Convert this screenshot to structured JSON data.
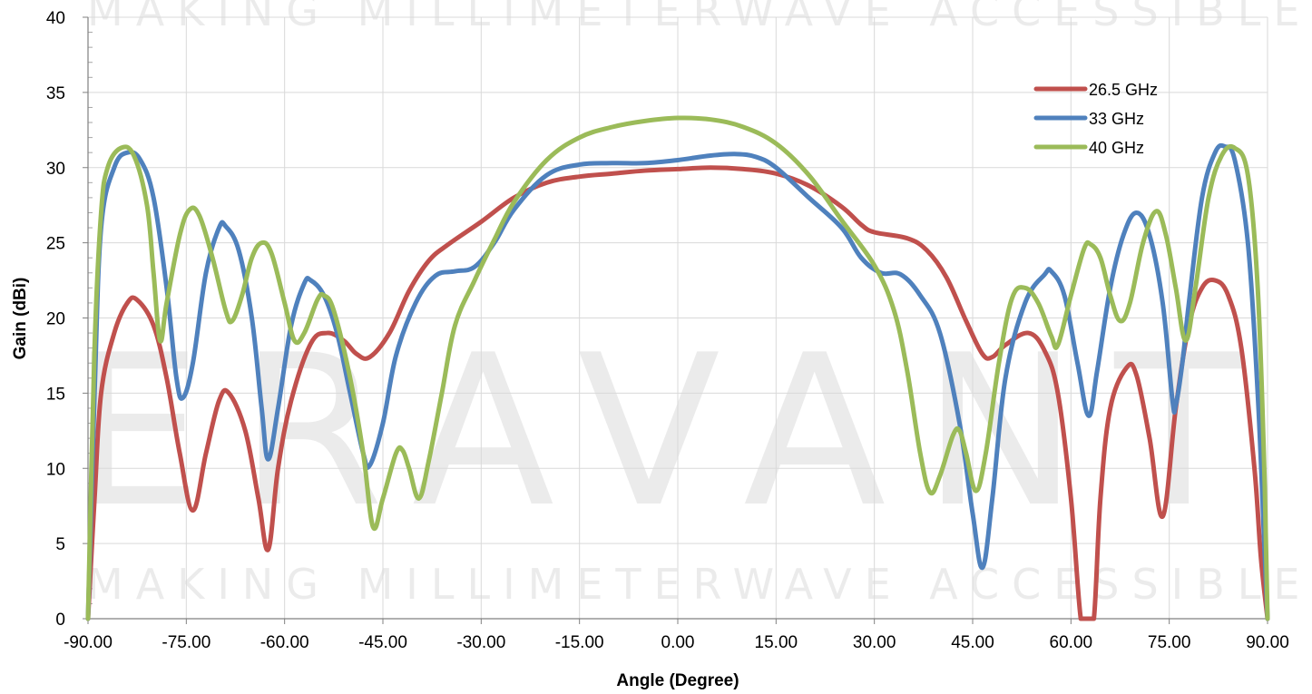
{
  "chart_data": {
    "type": "line",
    "xlabel": "Angle (Degree)",
    "ylabel": "Gain (dBi)",
    "xlim": [
      -90,
      90
    ],
    "ylim": [
      0,
      40
    ],
    "x_ticks": [
      "-90.00",
      "-75.00",
      "-60.00",
      "-45.00",
      "-30.00",
      "-15.00",
      "0.00",
      "15.00",
      "30.00",
      "45.00",
      "60.00",
      "75.00",
      "90.00"
    ],
    "y_ticks": [
      "0",
      "5",
      "10",
      "15",
      "20",
      "25",
      "30",
      "35",
      "40"
    ],
    "grid": "vertical and horizontal major gridlines",
    "legend_position": "top-right",
    "series": [
      {
        "name": "26.5 GHz",
        "color": "#c0504d",
        "points": [
          [
            -90,
            0
          ],
          [
            -89,
            8
          ],
          [
            -88,
            15
          ],
          [
            -86,
            19
          ],
          [
            -84,
            21
          ],
          [
            -82.5,
            21.2
          ],
          [
            -80,
            19.5
          ],
          [
            -78,
            16
          ],
          [
            -76,
            11
          ],
          [
            -74,
            7.2
          ],
          [
            -72,
            11
          ],
          [
            -70,
            14.5
          ],
          [
            -68.5,
            15
          ],
          [
            -66,
            12.5
          ],
          [
            -64,
            8
          ],
          [
            -62.5,
            4.6
          ],
          [
            -61,
            10
          ],
          [
            -59,
            14.5
          ],
          [
            -56,
            18.3
          ],
          [
            -53.5,
            19
          ],
          [
            -51,
            18.5
          ],
          [
            -49,
            17.6
          ],
          [
            -47,
            17.4
          ],
          [
            -44,
            19
          ],
          [
            -41,
            21.8
          ],
          [
            -38,
            23.8
          ],
          [
            -35,
            24.9
          ],
          [
            -30,
            26.4
          ],
          [
            -25,
            28
          ],
          [
            -20,
            29
          ],
          [
            -15,
            29.4
          ],
          [
            -10,
            29.6
          ],
          [
            -5,
            29.8
          ],
          [
            0,
            29.9
          ],
          [
            5,
            30
          ],
          [
            10,
            29.9
          ],
          [
            15,
            29.6
          ],
          [
            20,
            28.8
          ],
          [
            25,
            27.4
          ],
          [
            28,
            26.2
          ],
          [
            30,
            25.7
          ],
          [
            35,
            25.3
          ],
          [
            38,
            24.5
          ],
          [
            41,
            22.7
          ],
          [
            44,
            19.8
          ],
          [
            46.5,
            17.6
          ],
          [
            48,
            17.4
          ],
          [
            50,
            18.2
          ],
          [
            53.5,
            19
          ],
          [
            56,
            17.8
          ],
          [
            58,
            15
          ],
          [
            60,
            8
          ],
          [
            61.5,
            0
          ],
          [
            62.5,
            0
          ],
          [
            63.5,
            0
          ],
          [
            64.5,
            8
          ],
          [
            66,
            14
          ],
          [
            68.5,
            16.7
          ],
          [
            70,
            16.2
          ],
          [
            72,
            12
          ],
          [
            74,
            6.8
          ],
          [
            76,
            14
          ],
          [
            78,
            19.5
          ],
          [
            80,
            22
          ],
          [
            82,
            22.5
          ],
          [
            84,
            21.5
          ],
          [
            86,
            18
          ],
          [
            88,
            10
          ],
          [
            89,
            4
          ],
          [
            90,
            0
          ]
        ]
      },
      {
        "name": "33 GHz",
        "color": "#4f81bd",
        "points": [
          [
            -90,
            0
          ],
          [
            -89,
            15
          ],
          [
            -88,
            26
          ],
          [
            -86,
            30
          ],
          [
            -84,
            31
          ],
          [
            -82,
            30.5
          ],
          [
            -80,
            28
          ],
          [
            -78,
            22
          ],
          [
            -76.5,
            16
          ],
          [
            -75.5,
            14.7
          ],
          [
            -74,
            17
          ],
          [
            -72,
            23
          ],
          [
            -70,
            26
          ],
          [
            -69,
            26.1
          ],
          [
            -67,
            24.5
          ],
          [
            -65,
            20
          ],
          [
            -63.5,
            14
          ],
          [
            -62.5,
            10.6
          ],
          [
            -61,
            14
          ],
          [
            -59,
            19.5
          ],
          [
            -57,
            22.3
          ],
          [
            -56,
            22.5
          ],
          [
            -54,
            21.5
          ],
          [
            -52,
            19
          ],
          [
            -50,
            15
          ],
          [
            -48,
            11
          ],
          [
            -47,
            10.2
          ],
          [
            -45,
            13
          ],
          [
            -43,
            17.5
          ],
          [
            -40,
            21
          ],
          [
            -37,
            22.8
          ],
          [
            -34,
            23.1
          ],
          [
            -31,
            23.4
          ],
          [
            -28,
            25
          ],
          [
            -25,
            27.2
          ],
          [
            -20,
            29.5
          ],
          [
            -15,
            30.2
          ],
          [
            -10,
            30.3
          ],
          [
            -5,
            30.3
          ],
          [
            0,
            30.5
          ],
          [
            5,
            30.8
          ],
          [
            9,
            30.9
          ],
          [
            12,
            30.7
          ],
          [
            15,
            30
          ],
          [
            20,
            28
          ],
          [
            25,
            26
          ],
          [
            28,
            24
          ],
          [
            31,
            23
          ],
          [
            34,
            22.9
          ],
          [
            37,
            21.5
          ],
          [
            40,
            19
          ],
          [
            43,
            13
          ],
          [
            45,
            7
          ],
          [
            46.5,
            3.4
          ],
          [
            48,
            8
          ],
          [
            50,
            16
          ],
          [
            53,
            21
          ],
          [
            56,
            22.9
          ],
          [
            57,
            23.1
          ],
          [
            59,
            21.5
          ],
          [
            61,
            17
          ],
          [
            62.7,
            13.5
          ],
          [
            64,
            16.5
          ],
          [
            66,
            22
          ],
          [
            68,
            25.5
          ],
          [
            70,
            27
          ],
          [
            72,
            25.5
          ],
          [
            74,
            21
          ],
          [
            75.5,
            14.5
          ],
          [
            76,
            14.2
          ],
          [
            77,
            17
          ],
          [
            78,
            21
          ],
          [
            80,
            28
          ],
          [
            82,
            31
          ],
          [
            83.5,
            31.4
          ],
          [
            85,
            30.5
          ],
          [
            87,
            25
          ],
          [
            88.5,
            15
          ],
          [
            89.5,
            5
          ],
          [
            90,
            0
          ]
        ]
      },
      {
        "name": "40 GHz",
        "color": "#9bbb59",
        "points": [
          [
            -90,
            0
          ],
          [
            -89,
            18
          ],
          [
            -88,
            27
          ],
          [
            -87,
            30
          ],
          [
            -85,
            31.3
          ],
          [
            -83,
            30.8
          ],
          [
            -81,
            27.5
          ],
          [
            -80,
            23
          ],
          [
            -79,
            18.5
          ],
          [
            -78,
            21
          ],
          [
            -76,
            25.5
          ],
          [
            -74.5,
            27.2
          ],
          [
            -73,
            26.8
          ],
          [
            -71,
            24
          ],
          [
            -69,
            20.5
          ],
          [
            -68,
            19.8
          ],
          [
            -66.5,
            21.5
          ],
          [
            -65,
            24
          ],
          [
            -63.5,
            25
          ],
          [
            -62,
            24.3
          ],
          [
            -60,
            21
          ],
          [
            -58.5,
            18.5
          ],
          [
            -57,
            19
          ],
          [
            -55,
            21.2
          ],
          [
            -54,
            21.5
          ],
          [
            -52.5,
            20.5
          ],
          [
            -50,
            16
          ],
          [
            -48,
            11
          ],
          [
            -46.5,
            6.1
          ],
          [
            -45,
            8
          ],
          [
            -43,
            11
          ],
          [
            -42,
            11.2
          ],
          [
            -41,
            10
          ],
          [
            -39.5,
            8
          ],
          [
            -38,
            10.5
          ],
          [
            -36,
            15
          ],
          [
            -34,
            19.5
          ],
          [
            -31,
            22.5
          ],
          [
            -28,
            25.2
          ],
          [
            -25,
            27.7
          ],
          [
            -20,
            30.5
          ],
          [
            -15,
            32
          ],
          [
            -10,
            32.7
          ],
          [
            -5,
            33.1
          ],
          [
            0,
            33.3
          ],
          [
            5,
            33.2
          ],
          [
            10,
            32.7
          ],
          [
            15,
            31.6
          ],
          [
            20,
            29.5
          ],
          [
            25,
            26.5
          ],
          [
            30,
            23.5
          ],
          [
            33,
            20.5
          ],
          [
            35,
            16.5
          ],
          [
            37,
            11
          ],
          [
            38.5,
            8.4
          ],
          [
            40,
            9.5
          ],
          [
            42,
            12.2
          ],
          [
            43,
            12.5
          ],
          [
            44,
            11
          ],
          [
            45.5,
            8.5
          ],
          [
            47,
            11
          ],
          [
            49,
            17
          ],
          [
            51,
            21.3
          ],
          [
            53,
            22
          ],
          [
            55,
            21
          ],
          [
            57,
            18.8
          ],
          [
            58,
            18.2
          ],
          [
            60,
            21.5
          ],
          [
            62,
            24.6
          ],
          [
            63,
            24.9
          ],
          [
            64.5,
            24
          ],
          [
            66,
            21.5
          ],
          [
            67.5,
            19.8
          ],
          [
            69,
            21
          ],
          [
            71,
            25
          ],
          [
            73,
            27.1
          ],
          [
            74.5,
            25.5
          ],
          [
            76,
            22
          ],
          [
            77.5,
            18.5
          ],
          [
            79,
            22
          ],
          [
            81,
            28
          ],
          [
            83,
            30.8
          ],
          [
            85,
            31.3
          ],
          [
            87,
            29.5
          ],
          [
            88.5,
            22
          ],
          [
            89.5,
            10
          ],
          [
            90,
            0
          ]
        ]
      }
    ]
  },
  "watermark": {
    "tagline": "MAKING MILLIMETERWAVE ACCESSIBLE",
    "logo_text": "ERAVANT"
  }
}
